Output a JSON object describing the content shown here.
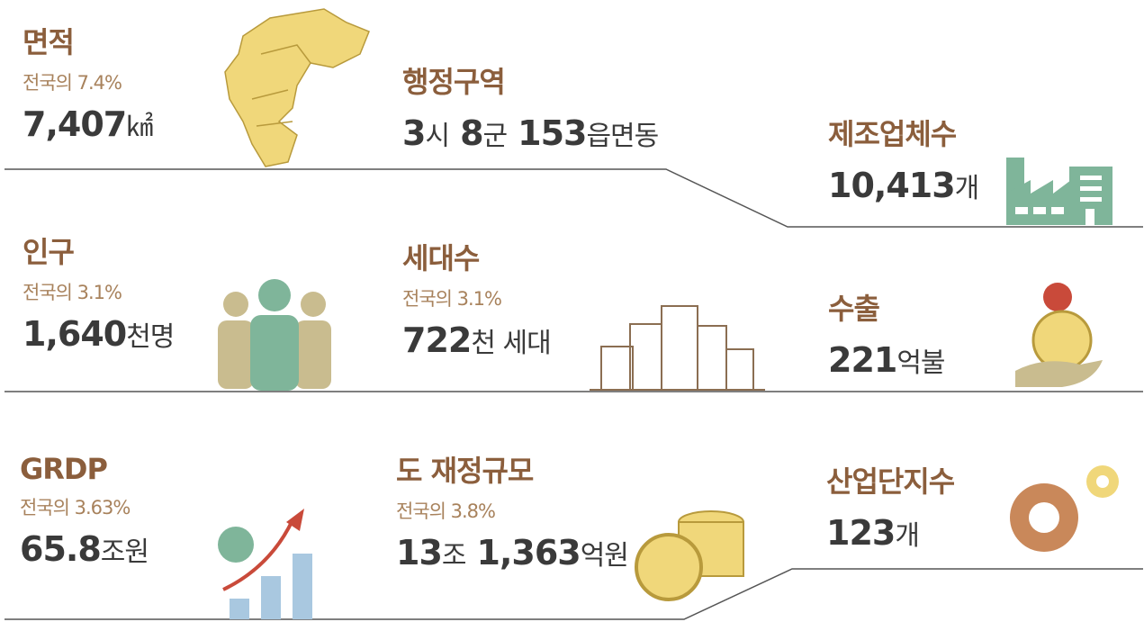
{
  "items": [
    {
      "title": "면적",
      "sub": "전국의 7.4%",
      "parts": [
        "7,407",
        "㎢"
      ]
    },
    {
      "title": "행정구역",
      "parts": [
        "3",
        "시",
        "8",
        "군",
        "153",
        "읍면동"
      ]
    },
    {
      "title": "제조업체수",
      "parts": [
        "10,413",
        "개"
      ]
    },
    {
      "title": "인구",
      "sub": "전국의 3.1%",
      "parts": [
        "1,640",
        "천명"
      ]
    },
    {
      "title": "세대수",
      "sub": "전국의 3.1%",
      "parts": [
        "722",
        "천 세대"
      ]
    },
    {
      "title": "수출",
      "parts": [
        "221",
        "억불"
      ]
    },
    {
      "title": "GRDP",
      "sub": "전국의 3.63%",
      "parts": [
        "65.8",
        "조원"
      ]
    },
    {
      "title": "도 재정규모",
      "sub": "전국의 3.8%",
      "parts": [
        "13",
        "조",
        "1,363",
        "억원"
      ]
    },
    {
      "title": "산업단지수",
      "parts": [
        "123",
        "개"
      ]
    }
  ]
}
